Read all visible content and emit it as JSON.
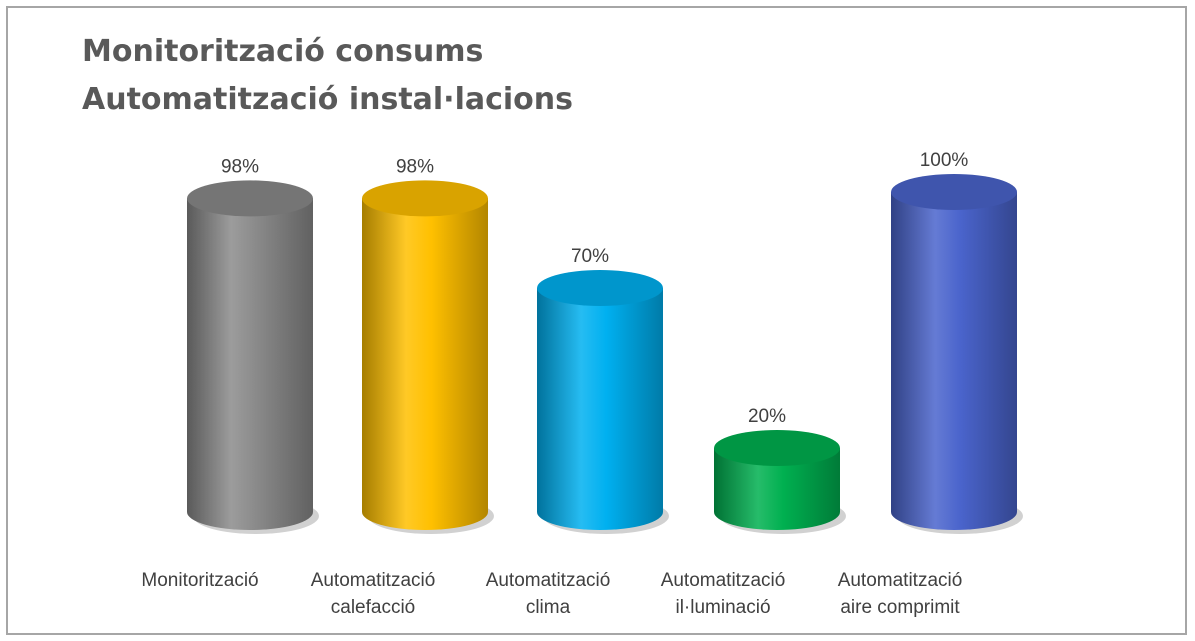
{
  "chart_data": {
    "type": "bar",
    "title": [
      "Monitorització consums",
      "Automatització instal·lacions"
    ],
    "categories": [
      [
        "Monitorització"
      ],
      [
        "Automatització",
        "calefacció"
      ],
      [
        "Automatització",
        "clima"
      ],
      [
        "Automatització",
        "il·luminació"
      ],
      [
        "Automatització",
        "aire comprimit"
      ]
    ],
    "values": [
      98,
      98,
      70,
      20,
      100
    ],
    "value_labels": [
      "98%",
      "98%",
      "70%",
      "20%",
      "100%"
    ],
    "colors": [
      "#8a8a8a",
      "#ffc000",
      "#00b0f0",
      "#00b050",
      "#4a64cc"
    ],
    "ylim": [
      0,
      100
    ],
    "style": "3d-cylinder",
    "grid": false,
    "legend": "none"
  }
}
